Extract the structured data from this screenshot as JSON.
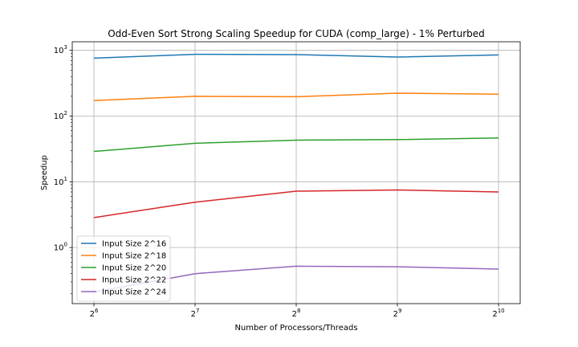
{
  "chart_data": {
    "type": "line",
    "title": "Odd-Even Sort Strong Scaling Speedup for CUDA (comp_large) - 1% Perturbed",
    "xlabel": "Number of Processors/Threads",
    "ylabel": "Speedup",
    "x_scale": "log2",
    "y_scale": "log10",
    "x": [
      64,
      128,
      256,
      512,
      1024
    ],
    "x_tick_labels": [
      {
        "base": "2",
        "exp": "6"
      },
      {
        "base": "2",
        "exp": "7"
      },
      {
        "base": "2",
        "exp": "8"
      },
      {
        "base": "2",
        "exp": "9"
      },
      {
        "base": "2",
        "exp": "10"
      }
    ],
    "y_tick_labels": [
      {
        "base": "10",
        "exp": "0",
        "value": 1
      },
      {
        "base": "10",
        "exp": "1",
        "value": 10
      },
      {
        "base": "10",
        "exp": "2",
        "value": 100
      },
      {
        "base": "10",
        "exp": "3",
        "value": 1000
      }
    ],
    "ylim": [
      0.14,
      1350
    ],
    "grid": true,
    "legend_position": "lower-left",
    "series": [
      {
        "name": "Input Size 2^16",
        "color": "#1f77b4",
        "values": [
          760,
          870,
          860,
          790,
          850
        ]
      },
      {
        "name": "Input Size 2^18",
        "color": "#ff7f0e",
        "values": [
          172,
          200,
          197,
          223,
          215
        ]
      },
      {
        "name": "Input Size 2^20",
        "color": "#2ca02c",
        "values": [
          29,
          38.5,
          43,
          43.8,
          46.5
        ]
      },
      {
        "name": "Input Size 2^22",
        "color": "#d62728",
        "values": [
          2.85,
          4.9,
          7.2,
          7.5,
          7.0
        ]
      },
      {
        "name": "Input Size 2^24",
        "color": "#9467bd",
        "values": [
          0.21,
          0.4,
          0.52,
          0.51,
          0.47
        ]
      }
    ]
  }
}
